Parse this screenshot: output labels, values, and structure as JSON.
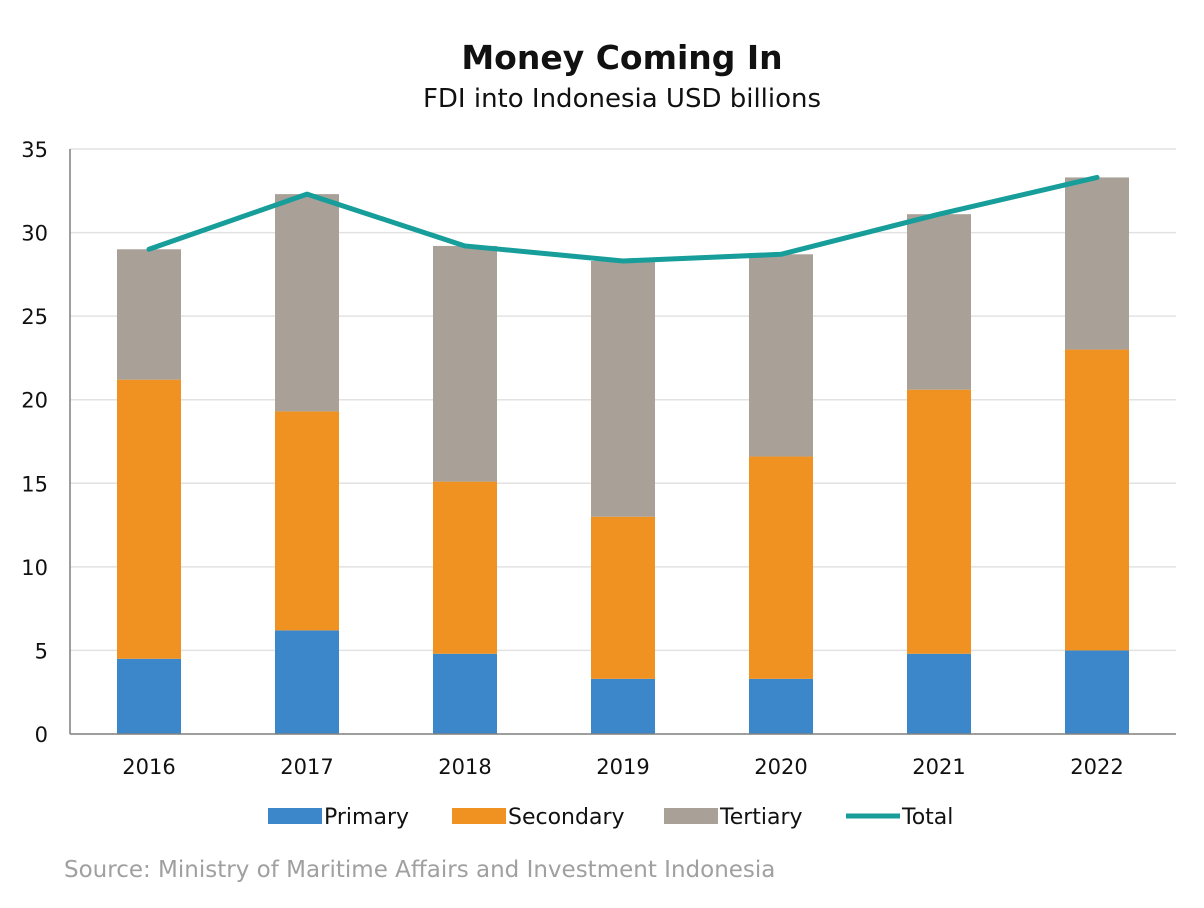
{
  "title": "Money Coming In",
  "subtitle": "FDI into Indonesia USD billions",
  "source": "Source: Ministry of Maritime Affairs and Investment Indonesia",
  "colors": {
    "primary": "#3b87c9",
    "secondary": "#ef9221",
    "tertiary": "#a9a097",
    "total": "#179e9a",
    "grid": "#e2e2e2",
    "axis": "#7f7f7f"
  },
  "chart_data": {
    "type": "bar",
    "stacked": true,
    "categories": [
      "2016",
      "2017",
      "2018",
      "2019",
      "2020",
      "2021",
      "2022"
    ],
    "series": [
      {
        "name": "Primary",
        "type": "bar",
        "color": "#3b87c9",
        "values": [
          4.5,
          6.2,
          4.8,
          3.3,
          3.3,
          4.8,
          5.0
        ]
      },
      {
        "name": "Secondary",
        "type": "bar",
        "color": "#ef9221",
        "values": [
          16.7,
          13.1,
          10.3,
          9.7,
          13.3,
          15.8,
          18.0
        ]
      },
      {
        "name": "Tertiary",
        "type": "bar",
        "color": "#a9a097",
        "values": [
          7.8,
          13.0,
          14.1,
          15.3,
          12.1,
          10.5,
          10.3
        ]
      },
      {
        "name": "Total",
        "type": "line",
        "color": "#179e9a",
        "values": [
          29.0,
          32.3,
          29.2,
          28.3,
          28.7,
          31.1,
          33.3
        ]
      }
    ],
    "ylim": [
      0,
      35
    ],
    "yticks": [
      0,
      5,
      10,
      15,
      20,
      25,
      30,
      35
    ],
    "grid": true,
    "legend": "bottom"
  }
}
